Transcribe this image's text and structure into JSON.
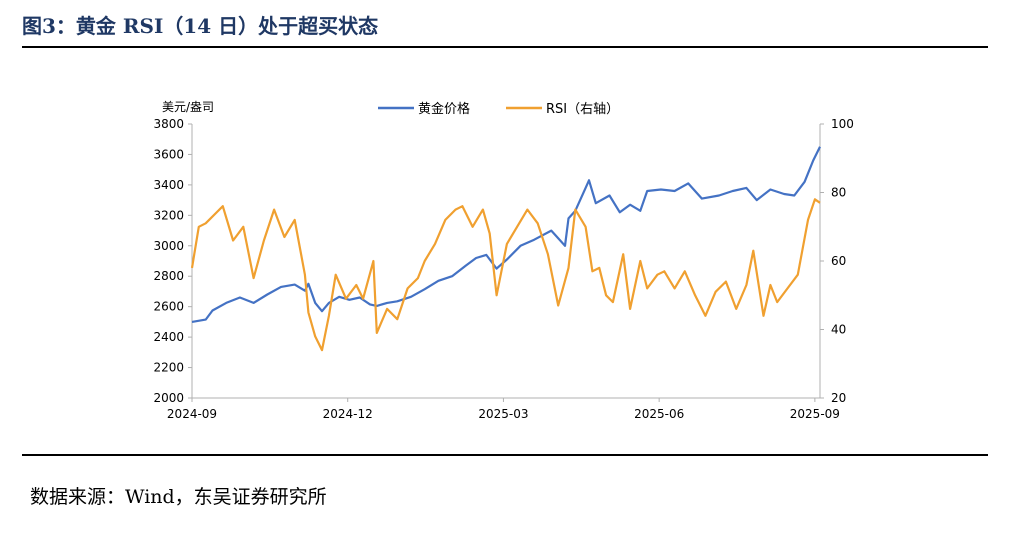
{
  "figure": {
    "title": "图3：黄金 RSI（14 日）处于超买状态",
    "source": "数据来源：Wind，东吴证券研究所"
  },
  "chart_data": {
    "type": "line",
    "left_axis_unit": "美元/盎司",
    "ylim": [
      2000,
      3800
    ],
    "y_ticks": [
      2000,
      2200,
      2400,
      2600,
      2800,
      3000,
      3200,
      3400,
      3600,
      3800
    ],
    "y2lim": [
      20,
      100
    ],
    "y2_ticks": [
      20,
      40,
      60,
      80,
      100
    ],
    "x_range": [
      "2024-09-02",
      "2025-09-04"
    ],
    "x_ticks": [
      {
        "date": "2024-09-02",
        "label": "2024-09"
      },
      {
        "date": "2024-12-02",
        "label": "2024-12"
      },
      {
        "date": "2025-03-03",
        "label": "2025-03"
      },
      {
        "date": "2025-06-02",
        "label": "2025-06"
      },
      {
        "date": "2025-09-01",
        "label": "2025-09"
      }
    ],
    "legend_position": "top-center",
    "series": [
      {
        "name": "黄金价格",
        "axis": "left",
        "color": "#4472c4",
        "points": [
          [
            "2024-09-02",
            2500
          ],
          [
            "2024-09-10",
            2515
          ],
          [
            "2024-09-14",
            2575
          ],
          [
            "2024-09-22",
            2625
          ],
          [
            "2024-09-30",
            2660
          ],
          [
            "2024-10-08",
            2625
          ],
          [
            "2024-10-16",
            2680
          ],
          [
            "2024-10-24",
            2730
          ],
          [
            "2024-11-01",
            2745
          ],
          [
            "2024-11-07",
            2705
          ],
          [
            "2024-11-09",
            2750
          ],
          [
            "2024-11-13",
            2625
          ],
          [
            "2024-11-17",
            2570
          ],
          [
            "2024-11-21",
            2625
          ],
          [
            "2024-11-27",
            2665
          ],
          [
            "2024-12-03",
            2645
          ],
          [
            "2024-12-09",
            2660
          ],
          [
            "2024-12-15",
            2615
          ],
          [
            "2024-12-19",
            2605
          ],
          [
            "2024-12-25",
            2625
          ],
          [
            "2024-12-31",
            2635
          ],
          [
            "2025-01-08",
            2665
          ],
          [
            "2025-01-16",
            2715
          ],
          [
            "2025-01-24",
            2770
          ],
          [
            "2025-02-01",
            2800
          ],
          [
            "2025-02-09",
            2870
          ],
          [
            "2025-02-15",
            2920
          ],
          [
            "2025-02-21",
            2940
          ],
          [
            "2025-02-27",
            2850
          ],
          [
            "2025-03-05",
            2910
          ],
          [
            "2025-03-13",
            3000
          ],
          [
            "2025-03-21",
            3040
          ],
          [
            "2025-03-31",
            3100
          ],
          [
            "2025-04-04",
            3050
          ],
          [
            "2025-04-08",
            3000
          ],
          [
            "2025-04-10",
            3180
          ],
          [
            "2025-04-14",
            3230
          ],
          [
            "2025-04-20",
            3380
          ],
          [
            "2025-04-22",
            3430
          ],
          [
            "2025-04-26",
            3280
          ],
          [
            "2025-05-04",
            3330
          ],
          [
            "2025-05-10",
            3220
          ],
          [
            "2025-05-16",
            3270
          ],
          [
            "2025-05-22",
            3230
          ],
          [
            "2025-05-26",
            3360
          ],
          [
            "2025-06-03",
            3370
          ],
          [
            "2025-06-11",
            3360
          ],
          [
            "2025-06-19",
            3410
          ],
          [
            "2025-06-27",
            3310
          ],
          [
            "2025-07-07",
            3330
          ],
          [
            "2025-07-15",
            3360
          ],
          [
            "2025-07-23",
            3380
          ],
          [
            "2025-07-29",
            3300
          ],
          [
            "2025-08-06",
            3370
          ],
          [
            "2025-08-14",
            3340
          ],
          [
            "2025-08-20",
            3330
          ],
          [
            "2025-08-26",
            3420
          ],
          [
            "2025-08-31",
            3560
          ],
          [
            "2025-09-04",
            3650
          ]
        ]
      },
      {
        "name": "RSI（右轴）",
        "axis": "right",
        "color": "#f0a030",
        "points": [
          [
            "2024-09-02",
            58
          ],
          [
            "2024-09-06",
            70
          ],
          [
            "2024-09-10",
            71
          ],
          [
            "2024-09-16",
            74
          ],
          [
            "2024-09-20",
            76
          ],
          [
            "2024-09-26",
            66
          ],
          [
            "2024-10-02",
            70
          ],
          [
            "2024-10-08",
            55
          ],
          [
            "2024-10-14",
            66
          ],
          [
            "2024-10-20",
            75
          ],
          [
            "2024-10-26",
            67
          ],
          [
            "2024-11-01",
            72
          ],
          [
            "2024-11-07",
            56
          ],
          [
            "2024-11-09",
            45
          ],
          [
            "2024-11-13",
            38
          ],
          [
            "2024-11-17",
            34
          ],
          [
            "2024-11-21",
            44
          ],
          [
            "2024-11-25",
            56
          ],
          [
            "2024-12-01",
            49
          ],
          [
            "2024-12-07",
            53
          ],
          [
            "2024-12-11",
            49
          ],
          [
            "2024-12-17",
            60
          ],
          [
            "2024-12-19",
            39
          ],
          [
            "2024-12-25",
            46
          ],
          [
            "2024-12-31",
            43
          ],
          [
            "2025-01-06",
            52
          ],
          [
            "2025-01-12",
            55
          ],
          [
            "2025-01-16",
            60
          ],
          [
            "2025-01-22",
            65
          ],
          [
            "2025-01-28",
            72
          ],
          [
            "2025-02-03",
            75
          ],
          [
            "2025-02-07",
            76
          ],
          [
            "2025-02-13",
            70
          ],
          [
            "2025-02-19",
            75
          ],
          [
            "2025-02-23",
            68
          ],
          [
            "2025-02-27",
            50
          ],
          [
            "2025-03-05",
            65
          ],
          [
            "2025-03-11",
            70
          ],
          [
            "2025-03-17",
            75
          ],
          [
            "2025-03-23",
            71
          ],
          [
            "2025-03-29",
            62
          ],
          [
            "2025-04-04",
            47
          ],
          [
            "2025-04-10",
            58
          ],
          [
            "2025-04-14",
            75
          ],
          [
            "2025-04-20",
            70
          ],
          [
            "2025-04-24",
            57
          ],
          [
            "2025-04-28",
            58
          ],
          [
            "2025-05-02",
            50
          ],
          [
            "2025-05-06",
            48
          ],
          [
            "2025-05-12",
            62
          ],
          [
            "2025-05-16",
            46
          ],
          [
            "2025-05-22",
            60
          ],
          [
            "2025-05-26",
            52
          ],
          [
            "2025-06-01",
            56
          ],
          [
            "2025-06-05",
            57
          ],
          [
            "2025-06-11",
            52
          ],
          [
            "2025-06-17",
            57
          ],
          [
            "2025-06-23",
            50
          ],
          [
            "2025-06-29",
            44
          ],
          [
            "2025-07-05",
            51
          ],
          [
            "2025-07-11",
            54
          ],
          [
            "2025-07-17",
            46
          ],
          [
            "2025-07-23",
            53
          ],
          [
            "2025-07-27",
            63
          ],
          [
            "2025-08-02",
            44
          ],
          [
            "2025-08-06",
            53
          ],
          [
            "2025-08-10",
            48
          ],
          [
            "2025-08-16",
            52
          ],
          [
            "2025-08-22",
            56
          ],
          [
            "2025-08-28",
            72
          ],
          [
            "2025-09-01",
            78
          ],
          [
            "2025-09-04",
            77
          ]
        ]
      }
    ]
  }
}
